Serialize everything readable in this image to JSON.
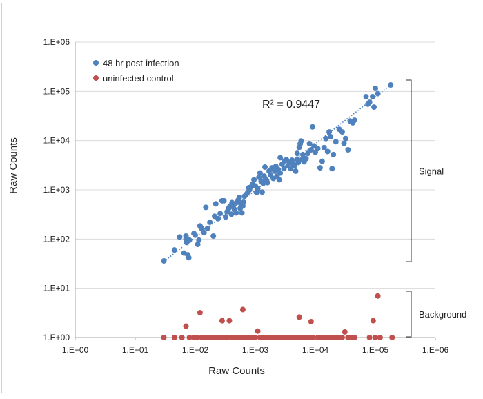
{
  "chart_data": {
    "type": "scatter",
    "x_scale": "log",
    "y_scale": "log",
    "xlim": [
      1,
      1000000
    ],
    "ylim": [
      1,
      1000000
    ],
    "xlabel": "Raw Counts",
    "ylabel": "Raw Counts",
    "x_ticks": [
      "1.E+00",
      "1.E+01",
      "1.E+02",
      "1.E+03",
      "1.E+04",
      "1.E+05",
      "1.E+06"
    ],
    "y_ticks": [
      "1.E+00",
      "1.E+01",
      "1.E+02",
      "1.E+03",
      "1.E+04",
      "1.E+05",
      "1.E+06"
    ],
    "grid": "horizontal major gridlines",
    "legend_position": "top-left",
    "annotation_r2": "R² = 0.9447",
    "annotations": [
      {
        "label": "Signal",
        "y_range": [
          35,
          130000
        ]
      },
      {
        "label": "Background",
        "y_range": [
          1,
          10
        ]
      }
    ],
    "colors": {
      "series1": "#4f81bd",
      "series2": "#c0504d",
      "trendline": "#4f81bd",
      "grid": "#d9d9d9"
    },
    "trendline": {
      "series": "48 hr post-infection",
      "style": "dotted",
      "x_range": [
        30,
        180000
      ],
      "y_range": [
        35,
        135000
      ]
    },
    "series": [
      {
        "name": "48 hr post-infection",
        "points": [
          [
            30,
            36
          ],
          [
            45,
            60
          ],
          [
            55,
            110
          ],
          [
            65,
            52
          ],
          [
            70,
            115
          ],
          [
            70,
            100
          ],
          [
            72,
            85
          ],
          [
            75,
            48
          ],
          [
            78,
            42
          ],
          [
            80,
            95
          ],
          [
            95,
            130
          ],
          [
            100,
            120
          ],
          [
            110,
            78
          ],
          [
            115,
            95
          ],
          [
            120,
            185
          ],
          [
            125,
            170
          ],
          [
            130,
            160
          ],
          [
            140,
            135
          ],
          [
            150,
            440
          ],
          [
            160,
            165
          ],
          [
            175,
            220
          ],
          [
            200,
            115
          ],
          [
            210,
            290
          ],
          [
            220,
            520
          ],
          [
            240,
            260
          ],
          [
            260,
            330
          ],
          [
            280,
            600
          ],
          [
            300,
            600
          ],
          [
            320,
            280
          ],
          [
            340,
            360
          ],
          [
            360,
            420
          ],
          [
            380,
            470
          ],
          [
            400,
            320
          ],
          [
            410,
            550
          ],
          [
            430,
            480
          ],
          [
            450,
            400
          ],
          [
            480,
            340
          ],
          [
            500,
            560
          ],
          [
            520,
            620
          ],
          [
            540,
            700
          ],
          [
            560,
            420
          ],
          [
            580,
            500
          ],
          [
            600,
            340
          ],
          [
            620,
            470
          ],
          [
            640,
            560
          ],
          [
            660,
            740
          ],
          [
            700,
            800
          ],
          [
            750,
            900
          ],
          [
            780,
            1100
          ],
          [
            800,
            1000
          ],
          [
            850,
            1150
          ],
          [
            900,
            1300
          ],
          [
            950,
            1600
          ],
          [
            1000,
            1200
          ],
          [
            1050,
            880
          ],
          [
            1100,
            1050
          ],
          [
            1150,
            1800
          ],
          [
            1200,
            2200
          ],
          [
            1250,
            1500
          ],
          [
            1300,
            900
          ],
          [
            1350,
            1350
          ],
          [
            1400,
            1900
          ],
          [
            1450,
            2900
          ],
          [
            1500,
            1650
          ],
          [
            1600,
            1400
          ],
          [
            1700,
            2400
          ],
          [
            1800,
            2000
          ],
          [
            1900,
            2800
          ],
          [
            2000,
            1700
          ],
          [
            2100,
            2400
          ],
          [
            2200,
            3000
          ],
          [
            2300,
            1900
          ],
          [
            2400,
            2600
          ],
          [
            2500,
            1600
          ],
          [
            2600,
            2200
          ],
          [
            2800,
            3300
          ],
          [
            3000,
            2700
          ],
          [
            3100,
            3900
          ],
          [
            3300,
            4100
          ],
          [
            3500,
            3100
          ],
          [
            3700,
            3600
          ],
          [
            3900,
            2700
          ],
          [
            4100,
            4000
          ],
          [
            4300,
            3300
          ],
          [
            4500,
            3100
          ],
          [
            4700,
            2400
          ],
          [
            5000,
            4200
          ],
          [
            5200,
            3600
          ],
          [
            5400,
            7300
          ],
          [
            5600,
            8600
          ],
          [
            5800,
            9800
          ],
          [
            6000,
            4100
          ],
          [
            6200,
            5200
          ],
          [
            6500,
            3700
          ],
          [
            7000,
            4300
          ],
          [
            7500,
            5500
          ],
          [
            8000,
            8700
          ],
          [
            8500,
            6500
          ],
          [
            9000,
            19000
          ],
          [
            9500,
            7800
          ],
          [
            10000,
            5800
          ],
          [
            11000,
            6900
          ],
          [
            12000,
            2800
          ],
          [
            13000,
            3800
          ],
          [
            14000,
            7200
          ],
          [
            15000,
            11000
          ],
          [
            16000,
            6000
          ],
          [
            17000,
            15000
          ],
          [
            18000,
            12000
          ],
          [
            19000,
            2700
          ],
          [
            20000,
            5200
          ],
          [
            22000,
            9500
          ],
          [
            25000,
            17000
          ],
          [
            28000,
            15000
          ],
          [
            30000,
            8800
          ],
          [
            32000,
            11000
          ],
          [
            35000,
            6500
          ],
          [
            38000,
            25000
          ],
          [
            42000,
            23000
          ],
          [
            45000,
            26000
          ],
          [
            70000,
            78000
          ],
          [
            75000,
            55000
          ],
          [
            80000,
            60000
          ],
          [
            90000,
            78000
          ],
          [
            95000,
            48000
          ],
          [
            100000,
            115000
          ],
          [
            110000,
            90000
          ],
          [
            180000,
            135000
          ],
          [
            5000,
            5500
          ],
          [
            2600,
            4500
          ]
        ]
      },
      {
        "name": "uninfected control",
        "points": [
          [
            30,
            1
          ],
          [
            45,
            1
          ],
          [
            60,
            1
          ],
          [
            70,
            1.7
          ],
          [
            80,
            1
          ],
          [
            95,
            1
          ],
          [
            100,
            1
          ],
          [
            110,
            1
          ],
          [
            120,
            3.2
          ],
          [
            130,
            1
          ],
          [
            150,
            1
          ],
          [
            160,
            1
          ],
          [
            180,
            1
          ],
          [
            200,
            1
          ],
          [
            230,
            1
          ],
          [
            260,
            1
          ],
          [
            280,
            2.2
          ],
          [
            300,
            1
          ],
          [
            340,
            1
          ],
          [
            370,
            2.2
          ],
          [
            400,
            1
          ],
          [
            420,
            1
          ],
          [
            460,
            1
          ],
          [
            500,
            1
          ],
          [
            540,
            1
          ],
          [
            580,
            1
          ],
          [
            620,
            3.7
          ],
          [
            660,
            1
          ],
          [
            700,
            1
          ],
          [
            760,
            1
          ],
          [
            820,
            1
          ],
          [
            880,
            1
          ],
          [
            940,
            1
          ],
          [
            1000,
            1
          ],
          [
            1100,
            1.35
          ],
          [
            1200,
            1
          ],
          [
            1300,
            1
          ],
          [
            1400,
            1
          ],
          [
            1550,
            1
          ],
          [
            1700,
            1
          ],
          [
            1850,
            1
          ],
          [
            2000,
            1
          ],
          [
            2200,
            1
          ],
          [
            2400,
            1
          ],
          [
            2600,
            1
          ],
          [
            2900,
            1
          ],
          [
            3200,
            1
          ],
          [
            3500,
            1
          ],
          [
            3800,
            1
          ],
          [
            4100,
            1
          ],
          [
            4400,
            1
          ],
          [
            4700,
            1
          ],
          [
            5000,
            1
          ],
          [
            5400,
            2.6
          ],
          [
            5800,
            1
          ],
          [
            6300,
            1
          ],
          [
            7000,
            1
          ],
          [
            8000,
            1
          ],
          [
            8500,
            2.1
          ],
          [
            9000,
            1
          ],
          [
            11000,
            1
          ],
          [
            12500,
            1
          ],
          [
            14000,
            1
          ],
          [
            16000,
            1
          ],
          [
            18000,
            1
          ],
          [
            21000,
            1
          ],
          [
            24000,
            1
          ],
          [
            28000,
            1
          ],
          [
            31000,
            1.3
          ],
          [
            35000,
            1
          ],
          [
            40000,
            1
          ],
          [
            45000,
            1
          ],
          [
            80000,
            1
          ],
          [
            92000,
            2.2
          ],
          [
            100000,
            1
          ],
          [
            110000,
            7
          ],
          [
            120000,
            1
          ],
          [
            190000,
            1
          ]
        ]
      }
    ]
  }
}
